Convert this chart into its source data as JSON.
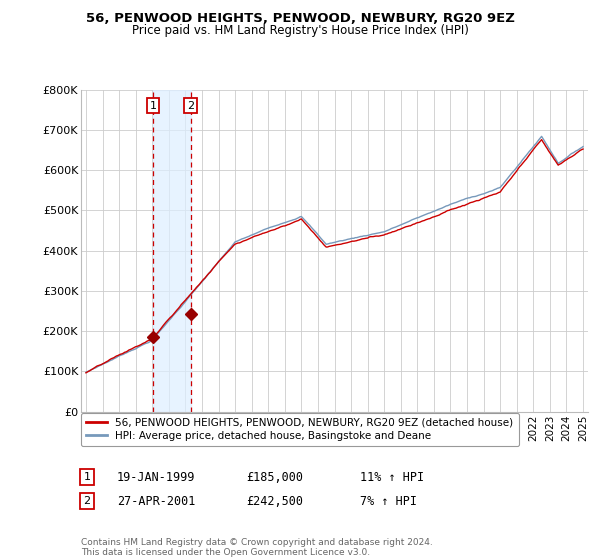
{
  "title": "56, PENWOOD HEIGHTS, PENWOOD, NEWBURY, RG20 9EZ",
  "subtitle": "Price paid vs. HM Land Registry's House Price Index (HPI)",
  "ylim": [
    0,
    800000
  ],
  "yticks": [
    0,
    100000,
    200000,
    300000,
    400000,
    500000,
    600000,
    700000,
    800000
  ],
  "ytick_labels": [
    "£0",
    "£100K",
    "£200K",
    "£300K",
    "£400K",
    "£500K",
    "£600K",
    "£700K",
    "£800K"
  ],
  "sale1": {
    "date_year": 1999.05,
    "price": 185000,
    "label": "1",
    "date_str": "19-JAN-1999",
    "hpi_pct": "11% ↑ HPI"
  },
  "sale2": {
    "date_year": 2001.32,
    "price": 242500,
    "label": "2",
    "date_str": "27-APR-2001",
    "hpi_pct": "7% ↑ HPI"
  },
  "red_line_color": "#cc0000",
  "blue_line_color": "#7799bb",
  "sale_dot_color": "#990000",
  "shaded_color": "#ddeeff",
  "legend_red_label": "56, PENWOOD HEIGHTS, PENWOOD, NEWBURY, RG20 9EZ (detached house)",
  "legend_blue_label": "HPI: Average price, detached house, Basingstoke and Deane",
  "footnote": "Contains HM Land Registry data © Crown copyright and database right 2024.\nThis data is licensed under the Open Government Licence v3.0.",
  "background_color": "#ffffff",
  "grid_color": "#cccccc",
  "title_fontsize": 9.5,
  "subtitle_fontsize": 8.5
}
